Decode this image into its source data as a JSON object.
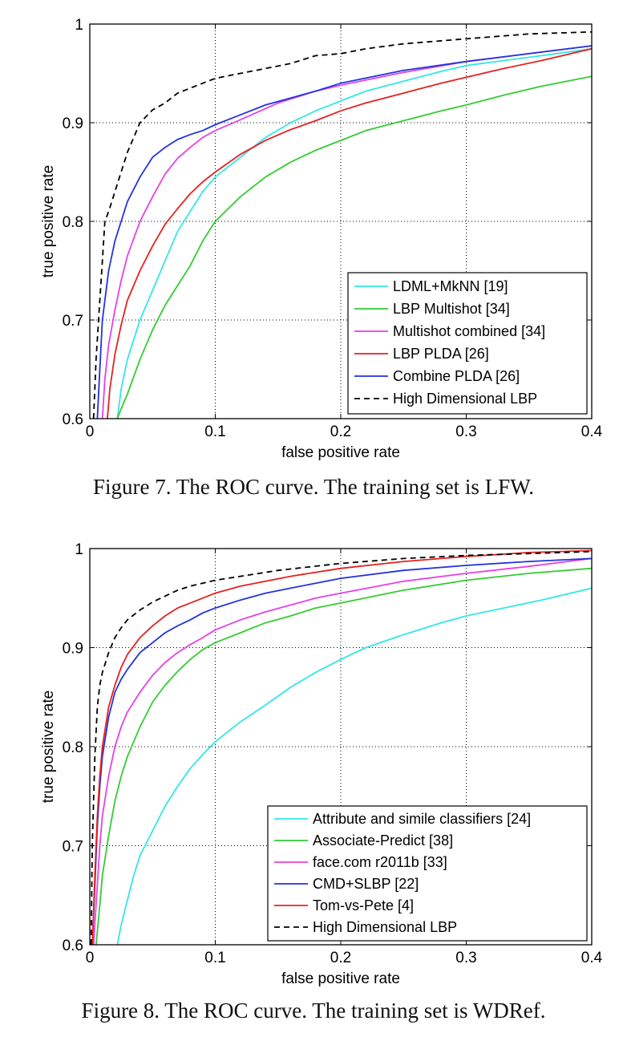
{
  "chart_data": [
    {
      "type": "line",
      "id": "fig7",
      "xlabel": "false positive rate",
      "ylabel": "true positive rate",
      "xlim": [
        0,
        0.4
      ],
      "ylim": [
        0.6,
        1
      ],
      "xticks": [
        "0",
        "0.1",
        "0.2",
        "0.3",
        "0.4"
      ],
      "yticks": [
        "0.6",
        "0.7",
        "0.8",
        "0.9",
        "1"
      ],
      "grid": "dotted",
      "legend_position": "bottom-right",
      "caption": "Figure 7. The ROC curve. The training set is LFW.",
      "series": [
        {
          "name": "LDML+MkNN [19]",
          "color": "#33e6e6",
          "dash": "solid",
          "x": [
            0.022,
            0.025,
            0.03,
            0.04,
            0.05,
            0.06,
            0.07,
            0.08,
            0.09,
            0.1,
            0.12,
            0.14,
            0.16,
            0.18,
            0.2,
            0.22,
            0.25,
            0.28,
            0.3,
            0.33,
            0.36,
            0.4
          ],
          "y": [
            0.6,
            0.63,
            0.66,
            0.7,
            0.73,
            0.76,
            0.79,
            0.81,
            0.83,
            0.845,
            0.865,
            0.885,
            0.9,
            0.912,
            0.922,
            0.932,
            0.942,
            0.952,
            0.958,
            0.963,
            0.968,
            0.975
          ]
        },
        {
          "name": "LBP Multishot [34]",
          "color": "#33cc33",
          "dash": "solid",
          "x": [
            0.022,
            0.025,
            0.03,
            0.04,
            0.05,
            0.06,
            0.07,
            0.08,
            0.09,
            0.1,
            0.12,
            0.14,
            0.16,
            0.18,
            0.2,
            0.22,
            0.25,
            0.28,
            0.3,
            0.33,
            0.36,
            0.4
          ],
          "y": [
            0.6,
            0.61,
            0.625,
            0.66,
            0.69,
            0.715,
            0.735,
            0.755,
            0.78,
            0.8,
            0.825,
            0.845,
            0.86,
            0.872,
            0.882,
            0.892,
            0.902,
            0.912,
            0.918,
            0.928,
            0.937,
            0.947
          ]
        },
        {
          "name": "Multishot combined [34]",
          "color": "#e640e6",
          "dash": "solid",
          "x": [
            0.01,
            0.012,
            0.015,
            0.02,
            0.025,
            0.03,
            0.04,
            0.05,
            0.06,
            0.07,
            0.08,
            0.09,
            0.1,
            0.12,
            0.15,
            0.18,
            0.2,
            0.25,
            0.3,
            0.35,
            0.4
          ],
          "y": [
            0.6,
            0.64,
            0.675,
            0.71,
            0.74,
            0.765,
            0.8,
            0.825,
            0.848,
            0.864,
            0.875,
            0.885,
            0.892,
            0.903,
            0.92,
            0.932,
            0.938,
            0.951,
            0.962,
            0.97,
            0.978
          ]
        },
        {
          "name": "LBP PLDA [26]",
          "color": "#e62020",
          "dash": "solid",
          "x": [
            0.014,
            0.016,
            0.02,
            0.025,
            0.03,
            0.04,
            0.05,
            0.06,
            0.07,
            0.08,
            0.09,
            0.1,
            0.12,
            0.14,
            0.16,
            0.18,
            0.2,
            0.22,
            0.25,
            0.28,
            0.3,
            0.33,
            0.36,
            0.4
          ],
          "y": [
            0.6,
            0.63,
            0.665,
            0.695,
            0.72,
            0.75,
            0.775,
            0.797,
            0.813,
            0.828,
            0.84,
            0.85,
            0.868,
            0.882,
            0.893,
            0.902,
            0.912,
            0.92,
            0.93,
            0.94,
            0.946,
            0.955,
            0.963,
            0.975
          ]
        },
        {
          "name": "Combine PLDA [26]",
          "color": "#2233dd",
          "dash": "solid",
          "x": [
            0.006,
            0.008,
            0.01,
            0.015,
            0.02,
            0.025,
            0.03,
            0.04,
            0.05,
            0.06,
            0.07,
            0.08,
            0.09,
            0.1,
            0.12,
            0.14,
            0.16,
            0.18,
            0.2,
            0.25,
            0.3,
            0.35,
            0.4
          ],
          "y": [
            0.6,
            0.65,
            0.7,
            0.75,
            0.78,
            0.8,
            0.82,
            0.845,
            0.865,
            0.875,
            0.883,
            0.888,
            0.892,
            0.898,
            0.908,
            0.918,
            0.925,
            0.932,
            0.94,
            0.953,
            0.962,
            0.97,
            0.978
          ]
        },
        {
          "name": "High Dimensional LBP",
          "color": "#000000",
          "dash": "dashed",
          "x": [
            0.003,
            0.005,
            0.008,
            0.01,
            0.012,
            0.015,
            0.02,
            0.025,
            0.03,
            0.035,
            0.04,
            0.05,
            0.06,
            0.07,
            0.08,
            0.09,
            0.1,
            0.12,
            0.14,
            0.16,
            0.18,
            0.2,
            0.22,
            0.25,
            0.3,
            0.35,
            0.4
          ],
          "y": [
            0.6,
            0.66,
            0.72,
            0.76,
            0.8,
            0.81,
            0.83,
            0.85,
            0.87,
            0.885,
            0.9,
            0.913,
            0.92,
            0.93,
            0.935,
            0.94,
            0.945,
            0.95,
            0.955,
            0.96,
            0.968,
            0.97,
            0.975,
            0.98,
            0.985,
            0.99,
            0.992
          ]
        }
      ]
    },
    {
      "type": "line",
      "id": "fig8",
      "xlabel": "false positive rate",
      "ylabel": "true positive rate",
      "xlim": [
        0,
        0.4
      ],
      "ylim": [
        0.6,
        1
      ],
      "xticks": [
        "0",
        "0.1",
        "0.2",
        "0.3",
        "0.4"
      ],
      "yticks": [
        "0.6",
        "0.7",
        "0.8",
        "0.9",
        "1"
      ],
      "grid": "dotted",
      "legend_position": "bottom-right",
      "caption": "Figure 8. The ROC curve. The training set is WDRef.",
      "series": [
        {
          "name": "Attribute and simile classifiers [24]",
          "color": "#33e6e6",
          "dash": "solid",
          "x": [
            0.022,
            0.025,
            0.03,
            0.035,
            0.04,
            0.05,
            0.06,
            0.07,
            0.08,
            0.09,
            0.1,
            0.12,
            0.14,
            0.16,
            0.18,
            0.2,
            0.22,
            0.25,
            0.28,
            0.3,
            0.33,
            0.36,
            0.4
          ],
          "y": [
            0.6,
            0.62,
            0.645,
            0.67,
            0.69,
            0.715,
            0.74,
            0.76,
            0.778,
            0.792,
            0.805,
            0.825,
            0.842,
            0.86,
            0.875,
            0.888,
            0.9,
            0.913,
            0.925,
            0.932,
            0.94,
            0.948,
            0.96
          ]
        },
        {
          "name": "Associate-Predict [38]",
          "color": "#33cc33",
          "dash": "solid",
          "x": [
            0.005,
            0.008,
            0.01,
            0.015,
            0.02,
            0.025,
            0.03,
            0.04,
            0.05,
            0.06,
            0.07,
            0.08,
            0.09,
            0.1,
            0.12,
            0.14,
            0.16,
            0.18,
            0.2,
            0.25,
            0.3,
            0.35,
            0.4
          ],
          "y": [
            0.6,
            0.64,
            0.67,
            0.71,
            0.745,
            0.77,
            0.79,
            0.82,
            0.845,
            0.862,
            0.876,
            0.888,
            0.898,
            0.905,
            0.915,
            0.925,
            0.932,
            0.94,
            0.945,
            0.958,
            0.968,
            0.975,
            0.98
          ]
        },
        {
          "name": "face.com r2011b [33]",
          "color": "#e640e6",
          "dash": "solid",
          "x": [
            0.003,
            0.005,
            0.008,
            0.01,
            0.015,
            0.02,
            0.025,
            0.03,
            0.04,
            0.05,
            0.06,
            0.07,
            0.08,
            0.09,
            0.1,
            0.12,
            0.14,
            0.16,
            0.18,
            0.2,
            0.25,
            0.3,
            0.35,
            0.4
          ],
          "y": [
            0.6,
            0.64,
            0.7,
            0.73,
            0.77,
            0.8,
            0.82,
            0.835,
            0.855,
            0.872,
            0.885,
            0.895,
            0.903,
            0.91,
            0.918,
            0.928,
            0.936,
            0.943,
            0.95,
            0.955,
            0.967,
            0.975,
            0.982,
            0.99
          ]
        },
        {
          "name": "CMD+SLBP [22]",
          "color": "#2233dd",
          "dash": "solid",
          "x": [
            0.002,
            0.004,
            0.006,
            0.008,
            0.01,
            0.015,
            0.02,
            0.025,
            0.03,
            0.04,
            0.05,
            0.06,
            0.07,
            0.08,
            0.09,
            0.1,
            0.12,
            0.14,
            0.16,
            0.18,
            0.2,
            0.25,
            0.3,
            0.35,
            0.4
          ],
          "y": [
            0.6,
            0.66,
            0.72,
            0.76,
            0.79,
            0.83,
            0.855,
            0.868,
            0.878,
            0.895,
            0.905,
            0.915,
            0.922,
            0.928,
            0.935,
            0.94,
            0.948,
            0.955,
            0.96,
            0.965,
            0.97,
            0.978,
            0.983,
            0.987,
            0.99
          ]
        },
        {
          "name": "Tom-vs-Pete [4]",
          "color": "#e62020",
          "dash": "solid",
          "x": [
            0.002,
            0.004,
            0.006,
            0.008,
            0.01,
            0.015,
            0.02,
            0.025,
            0.03,
            0.04,
            0.05,
            0.06,
            0.07,
            0.08,
            0.09,
            0.1,
            0.12,
            0.14,
            0.16,
            0.18,
            0.2,
            0.25,
            0.3,
            0.35,
            0.4
          ],
          "y": [
            0.6,
            0.67,
            0.73,
            0.77,
            0.8,
            0.84,
            0.862,
            0.88,
            0.893,
            0.91,
            0.922,
            0.932,
            0.94,
            0.945,
            0.95,
            0.955,
            0.962,
            0.967,
            0.972,
            0.976,
            0.98,
            0.987,
            0.992,
            0.996,
            0.998
          ]
        },
        {
          "name": "High Dimensional LBP",
          "color": "#000000",
          "dash": "dashed",
          "x": [
            0.001,
            0.002,
            0.004,
            0.006,
            0.008,
            0.01,
            0.015,
            0.02,
            0.025,
            0.03,
            0.04,
            0.05,
            0.06,
            0.07,
            0.08,
            0.1,
            0.12,
            0.15,
            0.2,
            0.25,
            0.3,
            0.35,
            0.4
          ],
          "y": [
            0.6,
            0.7,
            0.79,
            0.84,
            0.862,
            0.875,
            0.895,
            0.91,
            0.92,
            0.928,
            0.938,
            0.946,
            0.952,
            0.958,
            0.962,
            0.968,
            0.972,
            0.978,
            0.985,
            0.99,
            0.993,
            0.995,
            0.997
          ]
        }
      ]
    }
  ]
}
